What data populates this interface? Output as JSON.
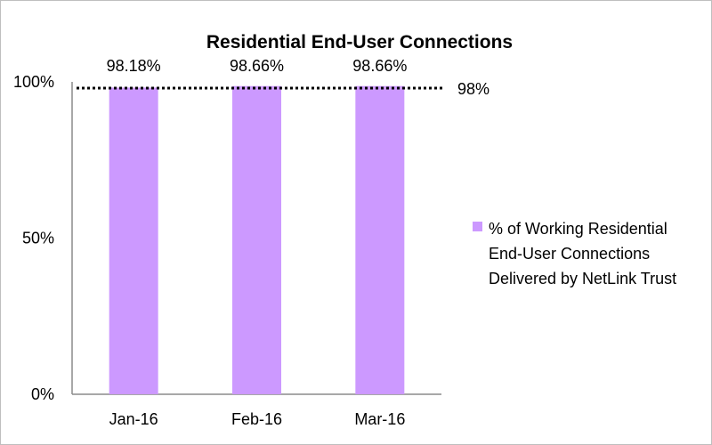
{
  "chart_data": {
    "type": "bar",
    "title": "Residential End-User Connections",
    "categories": [
      "Jan-16",
      "Feb-16",
      "Mar-16"
    ],
    "series": [
      {
        "name": "% of Working Residential End-User Connections Delivered by NetLink Trust",
        "values": [
          98.18,
          98.66,
          98.66
        ],
        "color": "#cc99ff"
      }
    ],
    "data_labels": [
      "98.18%",
      "98.66%",
      "98.66%"
    ],
    "ylim": [
      0,
      100
    ],
    "yticks": [
      {
        "value": 0,
        "label": "0%"
      },
      {
        "value": 50,
        "label": "50%"
      },
      {
        "value": 100,
        "label": "100%"
      }
    ],
    "target": {
      "value": 98,
      "label": "98%",
      "style": "dotted"
    },
    "legend": {
      "position": "right",
      "lines": [
        "% of Working Residential",
        "End-User Connections",
        "Delivered by NetLink Trust"
      ]
    },
    "grid": false
  }
}
